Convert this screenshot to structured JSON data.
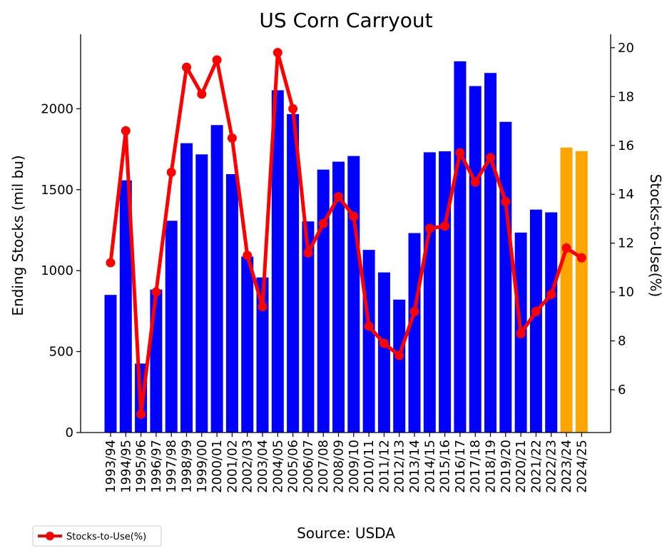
{
  "chart_data": {
    "type": "bar+line",
    "title": "US Corn Carryout",
    "source": "Source: USDA",
    "ylabel": "Ending Stocks (mil bu)",
    "y2label": "Stocks-to-Use(%)",
    "ylim": [
      0,
      2460
    ],
    "y2lim": [
      4.25,
      20.55
    ],
    "yticks": [
      0,
      500,
      1000,
      1500,
      2000
    ],
    "y2ticks": [
      6,
      8,
      10,
      12,
      14,
      16,
      18,
      20
    ],
    "grid": false,
    "legend": {
      "placement": "bottom-left",
      "entries": [
        "Stocks-to-Use(%)"
      ]
    },
    "categories": [
      "1993/94",
      "1994/95",
      "1995/96",
      "1996/97",
      "1997/98",
      "1998/99",
      "1999/00",
      "2000/01",
      "2001/02",
      "2002/03",
      "2003/04",
      "2004/05",
      "2005/06",
      "2006/07",
      "2007/08",
      "2008/09",
      "2009/10",
      "2010/11",
      "2011/12",
      "2012/13",
      "2013/14",
      "2014/15",
      "2015/16",
      "2016/17",
      "2017/18",
      "2018/19",
      "2019/20",
      "2020/21",
      "2021/22",
      "2022/23",
      "2023/24",
      "2024/25"
    ],
    "series": [
      {
        "kind": "bar",
        "axis": "left",
        "values": [
          850,
          1558,
          426,
          883,
          1308,
          1787,
          1718,
          1899,
          1596,
          1087,
          958,
          2114,
          1967,
          1304,
          1624,
          1673,
          1708,
          1128,
          989,
          821,
          1232,
          1731,
          1737,
          2293,
          2140,
          2221,
          1919,
          1235,
          1377,
          1360,
          1760,
          1738
        ],
        "colors": [
          "#0000ff",
          "#0000ff",
          "#0000ff",
          "#0000ff",
          "#0000ff",
          "#0000ff",
          "#0000ff",
          "#0000ff",
          "#0000ff",
          "#0000ff",
          "#0000ff",
          "#0000ff",
          "#0000ff",
          "#0000ff",
          "#0000ff",
          "#0000ff",
          "#0000ff",
          "#0000ff",
          "#0000ff",
          "#0000ff",
          "#0000ff",
          "#0000ff",
          "#0000ff",
          "#0000ff",
          "#0000ff",
          "#0000ff",
          "#0000ff",
          "#0000ff",
          "#0000ff",
          "#0000ff",
          "#ffa500",
          "#ffa500"
        ]
      },
      {
        "kind": "line",
        "axis": "right",
        "name": "Stocks-to-Use(%)",
        "color": "#ff0000",
        "values": [
          11.2,
          16.6,
          5.0,
          10.0,
          14.9,
          19.2,
          18.1,
          19.5,
          16.3,
          11.5,
          9.4,
          19.8,
          17.5,
          11.6,
          12.8,
          13.9,
          13.1,
          8.6,
          7.9,
          7.4,
          9.2,
          12.6,
          12.7,
          15.7,
          14.5,
          15.5,
          13.7,
          8.3,
          9.2,
          9.9,
          11.8,
          11.4
        ]
      }
    ]
  }
}
